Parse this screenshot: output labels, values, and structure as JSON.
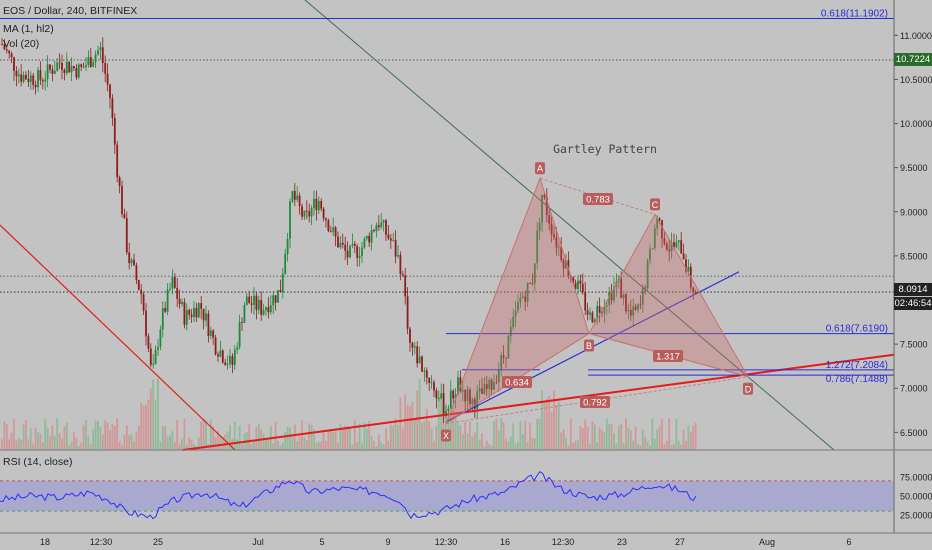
{
  "header": {
    "symbol": "EOS / Dollar, 240, BITFINEX",
    "ma": "MA (1, hl2)",
    "vol": "Vol (20)",
    "rsi": "RSI (14, close)"
  },
  "pattern_title": "Gartley Pattern",
  "chart_data": {
    "type": "candlestick",
    "yaxis": {
      "range": [
        6.3,
        11.4
      ],
      "ticks": [
        "11.0000",
        "10.5000",
        "10.0000",
        "9.5000",
        "9.0000",
        "8.5000",
        "8.0000",
        "7.5000",
        "7.0000",
        "6.5000"
      ]
    },
    "xaxis_labels": [
      "18",
      "12:30",
      "25",
      "Jul",
      "5",
      "9",
      "12:30",
      "16",
      "12:30",
      "23",
      "27",
      "Aug",
      "6"
    ],
    "price_tags": {
      "high": "10.7224",
      "last": "8.0914",
      "countdown": "02:46:54"
    },
    "rsi_axis": [
      "75.0000",
      "50.0000",
      "25.0000"
    ],
    "fib_levels": [
      {
        "label": "0.618(11.1902)",
        "value": 11.19
      },
      {
        "label": "0.618(7.6190)",
        "value": 7.619
      },
      {
        "label": "1.272(7.2084)",
        "value": 7.208
      },
      {
        "label": "0.786(7.1488)",
        "value": 7.149
      }
    ],
    "gartley_points": [
      {
        "label": "X",
        "value": 6.6
      },
      {
        "label": "A",
        "value": 9.38
      },
      {
        "label": "B",
        "value": 7.62
      },
      {
        "label": "C",
        "value": 8.97
      },
      {
        "label": "D",
        "value": 7.13
      }
    ],
    "ratios": [
      "0.783",
      "1.317",
      "0.634",
      "0.792"
    ]
  },
  "colors": {
    "bg": "#c3c3c3",
    "up": "#1c8a3a",
    "down": "#8e1c1c",
    "pattern": "#c87070",
    "fib": "#2a2ad8",
    "trend": "#e31b1b",
    "rsi": "#2d2dff"
  }
}
